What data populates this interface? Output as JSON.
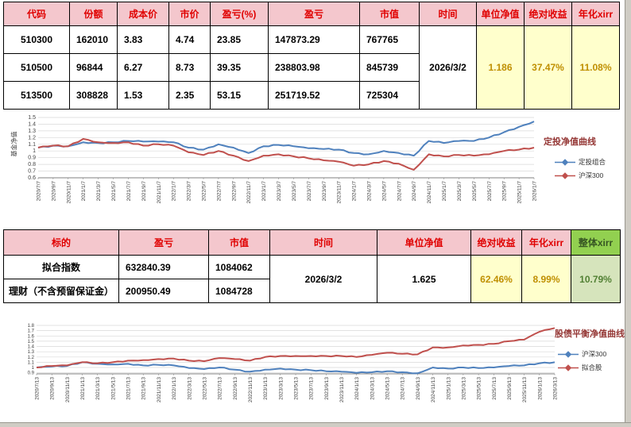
{
  "colors": {
    "header_bg": "#f4c7cd",
    "header_text": "#e00000",
    "yellow_bg": "#ffffcc",
    "yellow_text": "#bf8f00",
    "green_header_bg": "#92d050",
    "green_cell_bg": "#d6e4bc",
    "green_cell_text": "#538135",
    "chart_title": "#943634"
  },
  "table1": {
    "headers": [
      "代码",
      "份额",
      "成本价",
      "市价",
      "盈亏(%)",
      "盈亏",
      "市值",
      "时间",
      "单位净值",
      "绝对收益",
      "年化xirr"
    ],
    "rows": [
      {
        "code": "510300",
        "shares": "162010",
        "cost": "3.83",
        "price": "4.74",
        "pl_pct": "23.85",
        "pl": "147873.29",
        "mv": "767765"
      },
      {
        "code": "510500",
        "shares": "96844",
        "cost": "6.27",
        "price": "8.73",
        "pl_pct": "39.35",
        "pl": "238803.98",
        "mv": "845739"
      },
      {
        "code": "513500",
        "shares": "308828",
        "cost": "1.53",
        "price": "2.35",
        "pl_pct": "53.15",
        "pl": "251719.52",
        "mv": "725304"
      }
    ],
    "merged": {
      "time": "2026/3/2",
      "unit_nav": "1.186",
      "abs_return": "37.47%",
      "xirr": "11.08%"
    }
  },
  "table2": {
    "headers": [
      "标的",
      "盈亏",
      "市值",
      "时间",
      "单位净值",
      "绝对收益",
      "年化xirr",
      "整体xirr"
    ],
    "rows": [
      {
        "name": "拟合指数",
        "pl": "632840.39",
        "mv": "1084062"
      },
      {
        "name": "理财（不含预留保证金）",
        "pl": "200950.49",
        "mv": "1084728"
      }
    ],
    "merged": {
      "time": "2026/3/2",
      "unit_nav": "1.625",
      "abs_return": "62.46%",
      "xirr": "8.99%",
      "overall_xirr": "10.79%"
    }
  },
  "chart_data": [
    {
      "type": "line",
      "title": "定投净值曲线",
      "xlabel": "",
      "ylabel": "基金净值",
      "ylim": [
        0.6,
        1.5
      ],
      "yticks": [
        1.5,
        1.4,
        1.3,
        1.2,
        1.1,
        1,
        0.9,
        0.8,
        0.7,
        0.6
      ],
      "legend_position": "right",
      "x": [
        "2020/7/7",
        "2020/9/7",
        "2020/11/7",
        "2021/1/7",
        "2021/3/7",
        "2021/5/7",
        "2021/7/7",
        "2021/9/7",
        "2021/11/7",
        "2022/1/7",
        "2022/3/7",
        "2022/5/7",
        "2022/7/7",
        "2022/9/7",
        "2022/11/7",
        "2023/1/7",
        "2023/3/7",
        "2023/5/7",
        "2023/7/7",
        "2023/9/7",
        "2023/11/7",
        "2024/1/7",
        "2024/3/7",
        "2024/5/7",
        "2024/7/7",
        "2024/9/7",
        "2024/11/7",
        "2025/1/7",
        "2025/3/7",
        "2025/5/7",
        "2025/7/7",
        "2025/9/7",
        "2025/11/7",
        "2026/1/7"
      ],
      "series": [
        {
          "name": "定投组合",
          "color": "#4f81bd",
          "values": [
            1.05,
            1.08,
            1.07,
            1.13,
            1.12,
            1.13,
            1.15,
            1.14,
            1.14,
            1.13,
            1.05,
            1.02,
            1.1,
            1.05,
            0.97,
            1.07,
            1.09,
            1.07,
            1.04,
            1.03,
            1.02,
            0.97,
            0.95,
            1.0,
            0.97,
            0.93,
            1.15,
            1.12,
            1.15,
            1.15,
            1.2,
            1.28,
            1.36,
            1.44
          ]
        },
        {
          "name": "沪深300",
          "color": "#c0504d",
          "values": [
            1.05,
            1.08,
            1.07,
            1.18,
            1.13,
            1.12,
            1.13,
            1.08,
            1.1,
            1.08,
            0.98,
            0.94,
            1.0,
            0.93,
            0.85,
            0.93,
            0.95,
            0.92,
            0.89,
            0.86,
            0.84,
            0.78,
            0.8,
            0.85,
            0.81,
            0.72,
            0.95,
            0.92,
            0.94,
            0.93,
            0.95,
            1.0,
            1.02,
            1.05
          ]
        }
      ]
    },
    {
      "type": "line",
      "title": "股债平衡净值曲线",
      "xlabel": "",
      "ylabel": "",
      "ylim": [
        0.88,
        1.8
      ],
      "yticks": [
        1.8,
        1.7,
        1.6,
        1.5,
        1.4,
        1.3,
        1.2,
        1.1,
        1,
        0.9
      ],
      "legend_position": "right",
      "x": [
        "2020/7/13",
        "2020/9/13",
        "2020/11/13",
        "2021/1/13",
        "2021/3/13",
        "2021/5/13",
        "2021/7/13",
        "2021/9/13",
        "2021/11/13",
        "2022/1/13",
        "2022/3/13",
        "2022/5/13",
        "2022/7/13",
        "2022/9/13",
        "2022/11/13",
        "2023/1/13",
        "2023/3/13",
        "2023/5/13",
        "2023/7/13",
        "2023/9/13",
        "2023/11/13",
        "2024/1/13",
        "2024/3/13",
        "2024/5/13",
        "2024/7/13",
        "2024/9/13",
        "2024/11/13",
        "2025/1/13",
        "2025/3/13",
        "2025/5/13",
        "2025/7/13",
        "2025/9/13",
        "2025/11/13",
        "2026/1/13",
        "2026/3/13"
      ],
      "series": [
        {
          "name": "沪深300",
          "color": "#4f81bd",
          "values": [
            1.0,
            1.02,
            1.03,
            1.1,
            1.07,
            1.06,
            1.07,
            1.04,
            1.05,
            1.04,
            0.99,
            0.97,
            1.0,
            0.96,
            0.92,
            0.96,
            0.98,
            0.96,
            0.95,
            0.93,
            0.92,
            0.9,
            0.91,
            0.93,
            0.91,
            0.89,
            1.0,
            0.98,
            1.0,
            0.99,
            1.0,
            1.03,
            1.04,
            1.08,
            1.1
          ]
        },
        {
          "name": "拟合股",
          "color": "#c0504d",
          "values": [
            1.0,
            1.03,
            1.04,
            1.1,
            1.08,
            1.1,
            1.13,
            1.14,
            1.16,
            1.17,
            1.13,
            1.12,
            1.18,
            1.16,
            1.13,
            1.2,
            1.22,
            1.22,
            1.22,
            1.22,
            1.22,
            1.2,
            1.24,
            1.28,
            1.26,
            1.25,
            1.38,
            1.38,
            1.42,
            1.43,
            1.45,
            1.5,
            1.53,
            1.68,
            1.75
          ]
        }
      ]
    }
  ]
}
